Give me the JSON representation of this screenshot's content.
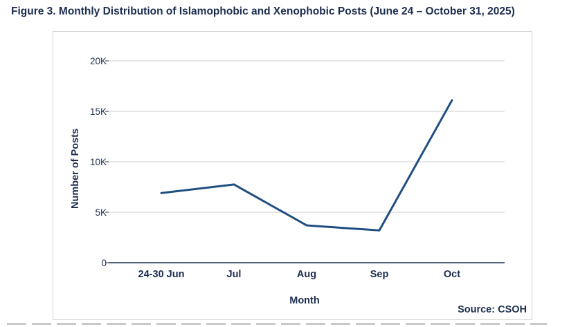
{
  "figure_title": "Figure 3. Monthly Distribution of Islamophobic and Xenophobic Posts (June 24 – October 31, 2025)",
  "chart_data": {
    "type": "line",
    "title": "Figure 3. Monthly Distribution of Islamophobic and Xenophobic Posts (June 24 – October 31, 2025)",
    "categories": [
      "24-30 Jun",
      "Jul",
      "Aug",
      "Sep",
      "Oct"
    ],
    "series": [
      {
        "name": "Posts",
        "values": [
          6900,
          7750,
          3700,
          3200,
          16100
        ]
      }
    ],
    "xlabel": "Month",
    "ylabel": "Number of Posts",
    "ylim": [
      0,
      20000
    ],
    "yticks": [
      0,
      5000,
      10000,
      15000,
      20000
    ],
    "ytick_labels": [
      "0",
      "5K",
      "10K",
      "15K",
      "20K"
    ],
    "grid": true,
    "source": "Source: CSOH",
    "line_color": "#1f4e82"
  }
}
